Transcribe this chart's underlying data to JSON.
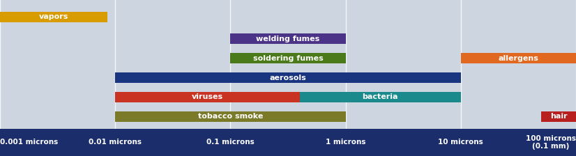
{
  "background_color": "#cdd5e0",
  "footer_color": "#1b2d6b",
  "bar_height": 0.42,
  "scale_labels": [
    "0.001 microns",
    "0.01 microns",
    "0.1 microns",
    "1 microns",
    "10 microns",
    "100 microns\n(0.1 mm)"
  ],
  "scale_positions": [
    0.001,
    0.01,
    0.1,
    1,
    10,
    100
  ],
  "bars": [
    {
      "label": "vapors",
      "xmin": 0.001,
      "xmax": 0.0085,
      "color": "#D89B00",
      "ypos": 5.5
    },
    {
      "label": "welding fumes",
      "xmin": 0.1,
      "xmax": 1.0,
      "color": "#4B3488",
      "ypos": 4.6
    },
    {
      "label": "soldering fumes",
      "xmin": 0.1,
      "xmax": 1.0,
      "color": "#4a7a1a",
      "ypos": 3.8
    },
    {
      "label": "aerosols",
      "xmin": 0.01,
      "xmax": 10.0,
      "color": "#1a3580",
      "ypos": 3.0
    },
    {
      "label": "viruses",
      "xmin": 0.01,
      "xmax": 0.4,
      "color": "#c93322",
      "ypos": 2.2
    },
    {
      "label": "bacteria",
      "xmin": 0.4,
      "xmax": 10.0,
      "color": "#1a8a8c",
      "ypos": 2.2
    },
    {
      "label": "tobacco smoke",
      "xmin": 0.01,
      "xmax": 1.0,
      "color": "#7a7a28",
      "ypos": 1.4
    },
    {
      "label": "allergens",
      "xmin": 10.0,
      "xmax": 100.0,
      "color": "#e06820",
      "ypos": 3.8
    },
    {
      "label": "hair",
      "xmin": 50.0,
      "xmax": 100.0,
      "color": "#b82020",
      "ypos": 1.4
    }
  ],
  "xmin": 0.001,
  "xmax": 100.0,
  "ymin": 0.9,
  "ymax": 6.2
}
